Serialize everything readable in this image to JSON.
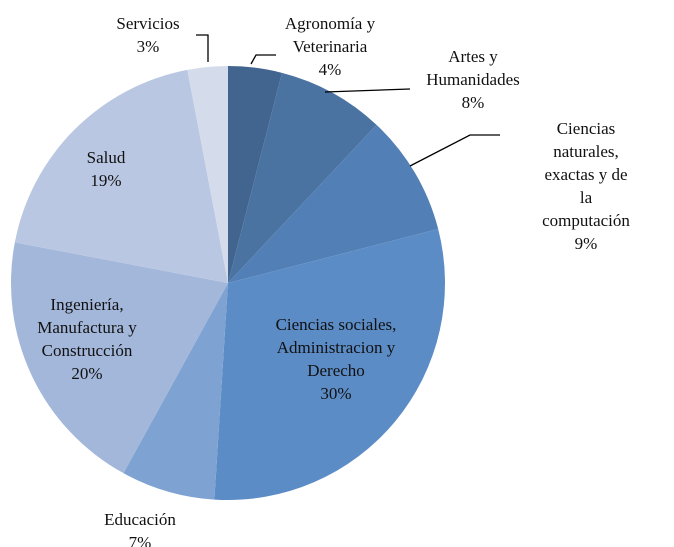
{
  "chart_data": {
    "type": "pie",
    "categories": [
      "Agronomía y\nVeterinaria",
      "Artes y\nHumanidades",
      "Ciencias naturales,\nexactas y de la\ncomputación",
      "Ciencias sociales,\nAdministracion y\nDerecho",
      "Educación",
      "Ingeniería,\nManufactura y\nConstrucción",
      "Salud",
      "Servicios"
    ],
    "values": [
      4,
      8,
      9,
      30,
      7,
      20,
      19,
      3
    ],
    "value_labels": [
      "4%",
      "8%",
      "9%",
      "30%",
      "7%",
      "20%",
      "19%",
      "3%"
    ],
    "colors": [
      "#41658f",
      "#4a73a2",
      "#527fb5",
      "#5b8cc6",
      "#7ea2d2",
      "#a3b7da",
      "#b9c7e2",
      "#d4dcec"
    ]
  }
}
